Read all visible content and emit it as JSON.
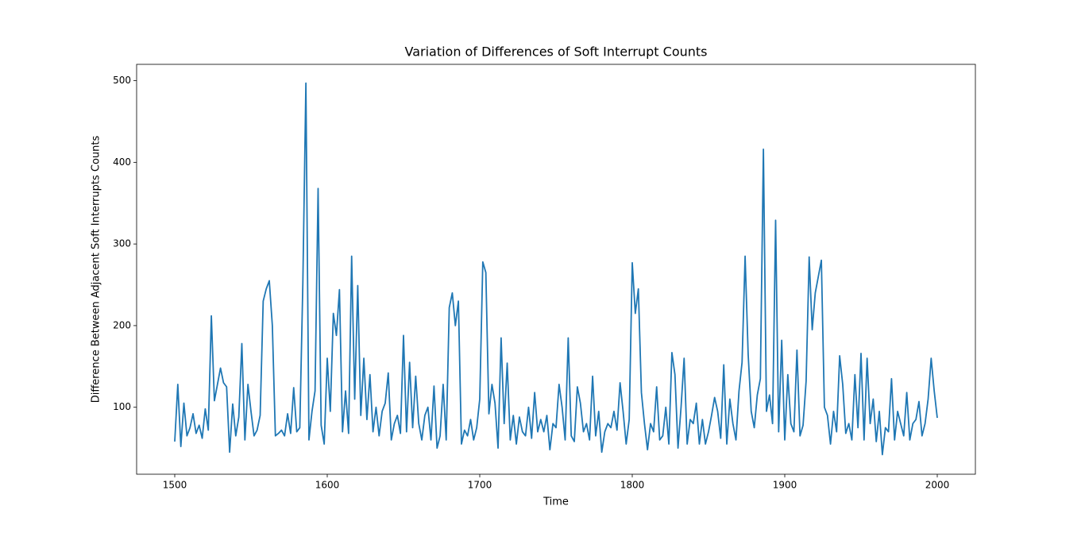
{
  "chart_data": {
    "type": "line",
    "title": "Variation of Differences of Soft Interrupt Counts",
    "x_label": "Time",
    "y_label": "Difference Between Adjacent Soft Interrupts Counts",
    "color": "#1f77b4",
    "xlim": [
      1475,
      2025
    ],
    "xticks": [
      1500,
      1600,
      1700,
      1800,
      1900,
      2000
    ],
    "ylim": [
      18,
      520
    ],
    "yticks": [
      100,
      200,
      300,
      400,
      500
    ],
    "x": [
      1500,
      1502,
      1504,
      1506,
      1508,
      1510,
      1512,
      1514,
      1516,
      1518,
      1520,
      1522,
      1524,
      1526,
      1528,
      1530,
      1532,
      1534,
      1536,
      1538,
      1540,
      1542,
      1544,
      1546,
      1548,
      1550,
      1552,
      1554,
      1556,
      1558,
      1560,
      1562,
      1564,
      1566,
      1568,
      1570,
      1572,
      1574,
      1576,
      1578,
      1580,
      1582,
      1584,
      1586,
      1588,
      1590,
      1592,
      1594,
      1596,
      1598,
      1600,
      1602,
      1604,
      1606,
      1608,
      1610,
      1612,
      1614,
      1616,
      1618,
      1620,
      1622,
      1624,
      1626,
      1628,
      1630,
      1632,
      1634,
      1636,
      1638,
      1640,
      1642,
      1644,
      1646,
      1648,
      1650,
      1652,
      1654,
      1656,
      1658,
      1660,
      1662,
      1664,
      1666,
      1668,
      1670,
      1672,
      1674,
      1676,
      1678,
      1680,
      1682,
      1684,
      1686,
      1688,
      1690,
      1692,
      1694,
      1696,
      1698,
      1700,
      1702,
      1704,
      1706,
      1708,
      1710,
      1712,
      1714,
      1716,
      1718,
      1720,
      1722,
      1724,
      1726,
      1728,
      1730,
      1732,
      1734,
      1736,
      1738,
      1740,
      1742,
      1744,
      1746,
      1748,
      1750,
      1752,
      1754,
      1756,
      1758,
      1760,
      1762,
      1764,
      1766,
      1768,
      1770,
      1772,
      1774,
      1776,
      1778,
      1780,
      1782,
      1784,
      1786,
      1788,
      1790,
      1792,
      1794,
      1796,
      1798,
      1800,
      1802,
      1804,
      1806,
      1808,
      1810,
      1812,
      1814,
      1816,
      1818,
      1820,
      1822,
      1824,
      1826,
      1828,
      1830,
      1832,
      1834,
      1836,
      1838,
      1840,
      1842,
      1844,
      1846,
      1848,
      1850,
      1852,
      1854,
      1856,
      1858,
      1860,
      1862,
      1864,
      1866,
      1868,
      1870,
      1872,
      1874,
      1876,
      1878,
      1880,
      1882,
      1884,
      1886,
      1888,
      1890,
      1892,
      1894,
      1896,
      1898,
      1900,
      1902,
      1904,
      1906,
      1908,
      1910,
      1912,
      1914,
      1916,
      1918,
      1920,
      1922,
      1924,
      1926,
      1928,
      1930,
      1932,
      1934,
      1936,
      1938,
      1940,
      1942,
      1944,
      1946,
      1948,
      1950,
      1952,
      1954,
      1956,
      1958,
      1960,
      1962,
      1964,
      1966,
      1968,
      1970,
      1972,
      1974,
      1976,
      1978,
      1980,
      1982,
      1984,
      1986,
      1988,
      1990,
      1992,
      1994,
      1996,
      1998,
      2000
    ],
    "values": [
      58,
      128,
      52,
      105,
      65,
      75,
      92,
      68,
      78,
      62,
      98,
      72,
      212,
      108,
      128,
      148,
      130,
      125,
      45,
      104,
      65,
      88,
      178,
      60,
      128,
      95,
      65,
      72,
      90,
      230,
      245,
      255,
      200,
      65,
      68,
      72,
      65,
      92,
      68,
      124,
      70,
      75,
      252,
      497,
      60,
      95,
      120,
      368,
      78,
      55,
      160,
      95,
      215,
      188,
      244,
      70,
      120,
      68,
      285,
      110,
      249,
      90,
      160,
      85,
      140,
      70,
      100,
      65,
      95,
      105,
      142,
      60,
      80,
      90,
      68,
      188,
      70,
      155,
      75,
      138,
      80,
      60,
      90,
      100,
      60,
      126,
      50,
      65,
      128,
      60,
      222,
      240,
      200,
      230,
      55,
      72,
      65,
      85,
      60,
      75,
      110,
      278,
      265,
      92,
      128,
      105,
      50,
      185,
      80,
      154,
      60,
      90,
      55,
      88,
      70,
      65,
      100,
      62,
      118,
      70,
      85,
      70,
      90,
      48,
      80,
      75,
      128,
      100,
      60,
      185,
      65,
      58,
      125,
      105,
      70,
      80,
      60,
      138,
      65,
      95,
      45,
      70,
      80,
      75,
      95,
      72,
      130,
      95,
      55,
      85,
      277,
      215,
      245,
      118,
      80,
      48,
      80,
      70,
      125,
      60,
      65,
      100,
      55,
      167,
      140,
      50,
      100,
      160,
      55,
      85,
      80,
      105,
      55,
      85,
      55,
      70,
      90,
      112,
      95,
      62,
      152,
      55,
      110,
      80,
      60,
      120,
      155,
      285,
      165,
      95,
      75,
      115,
      135,
      416,
      95,
      115,
      80,
      329,
      70,
      182,
      60,
      140,
      80,
      70,
      170,
      65,
      78,
      132,
      284,
      195,
      240,
      260,
      280,
      100,
      90,
      55,
      95,
      70,
      163,
      128,
      68,
      80,
      60,
      140,
      75,
      166,
      60,
      160,
      80,
      110,
      58,
      95,
      42,
      75,
      70,
      135,
      60,
      95,
      80,
      65,
      118,
      60,
      80,
      85,
      107,
      65,
      80,
      110,
      160,
      120,
      87
    ]
  }
}
